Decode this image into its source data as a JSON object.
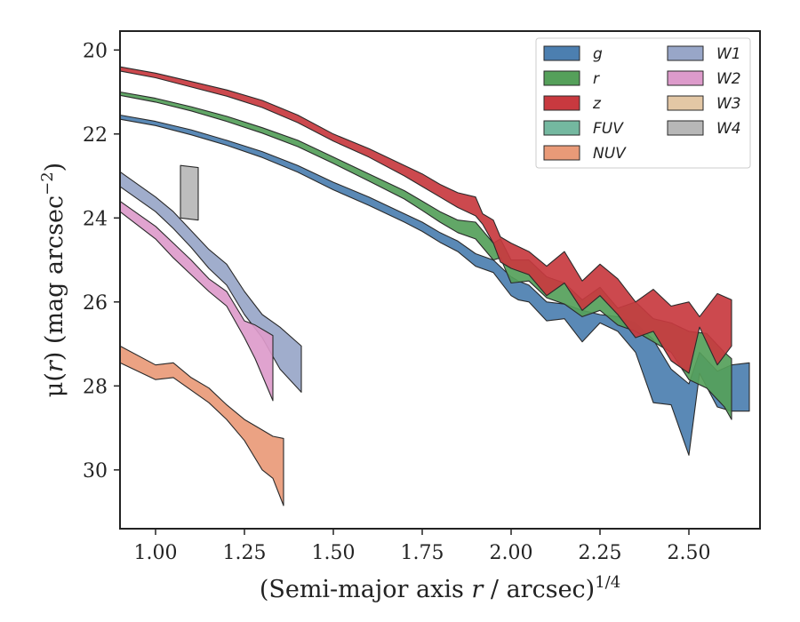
{
  "chart_data": {
    "type": "area",
    "xlabel": {
      "prefix": "(Semi-major axis ",
      "var": "r",
      "suffix": " / arcsec)",
      "exp": "1/4"
    },
    "ylabel": {
      "prefix": "μ(",
      "var": "r",
      "mid": ") (mag arcsec",
      "exp": "−2",
      "suffix": ")"
    },
    "xlim": [
      0.9,
      2.7
    ],
    "ylim": [
      31.4,
      19.55
    ],
    "y_inverted": true,
    "xticks": [
      1.0,
      1.25,
      1.5,
      1.75,
      2.0,
      2.25,
      2.5
    ],
    "xtick_labels": [
      "1.00",
      "1.25",
      "1.50",
      "1.75",
      "2.00",
      "2.25",
      "2.50"
    ],
    "yticks": [
      20,
      22,
      24,
      26,
      28,
      30
    ],
    "ytick_labels": [
      "20",
      "22",
      "24",
      "26",
      "28",
      "30"
    ],
    "grid": false,
    "legend_position": "top-right",
    "legend_columns": 2,
    "series": [
      {
        "name": "g",
        "color": "#4C7FB0",
        "x": [
          0.9,
          1.0,
          1.1,
          1.2,
          1.3,
          1.4,
          1.5,
          1.6,
          1.7,
          1.75,
          1.8,
          1.85,
          1.9,
          1.95,
          2.0,
          2.02,
          2.05,
          2.1,
          2.15,
          2.2,
          2.25,
          2.3,
          2.35,
          2.4,
          2.45,
          2.5,
          2.53,
          2.58,
          2.62,
          2.67
        ],
        "y_bright": [
          21.55,
          21.7,
          21.9,
          22.15,
          22.42,
          22.75,
          23.15,
          23.5,
          23.9,
          24.1,
          24.35,
          24.55,
          24.85,
          25.0,
          25.4,
          25.5,
          25.6,
          26.0,
          26.05,
          26.2,
          26.3,
          26.35,
          26.5,
          26.9,
          27.6,
          27.95,
          27.2,
          27.65,
          27.5,
          27.45
        ],
        "y_faint": [
          21.65,
          21.8,
          22.02,
          22.27,
          22.56,
          22.91,
          23.33,
          23.7,
          24.1,
          24.32,
          24.58,
          24.8,
          25.15,
          25.3,
          25.85,
          25.95,
          26.0,
          26.45,
          26.4,
          26.95,
          26.5,
          26.7,
          27.2,
          28.4,
          28.45,
          29.65,
          27.7,
          28.5,
          28.6,
          28.6
        ]
      },
      {
        "name": "r",
        "color": "#55A05A",
        "x": [
          0.9,
          1.0,
          1.1,
          1.2,
          1.3,
          1.4,
          1.5,
          1.6,
          1.7,
          1.75,
          1.8,
          1.85,
          1.9,
          1.95,
          1.97,
          2.0,
          2.05,
          2.1,
          2.15,
          2.2,
          2.25,
          2.3,
          2.35,
          2.4,
          2.45,
          2.5,
          2.55,
          2.6,
          2.62
        ],
        "y_bright": [
          21.0,
          21.15,
          21.35,
          21.58,
          21.85,
          22.15,
          22.55,
          22.95,
          23.35,
          23.6,
          23.85,
          24.05,
          24.1,
          24.6,
          24.5,
          25.0,
          25.0,
          25.4,
          25.55,
          25.95,
          25.65,
          26.15,
          26.0,
          26.4,
          26.5,
          26.7,
          26.75,
          27.2,
          27.35
        ],
        "y_faint": [
          21.08,
          21.24,
          21.45,
          21.7,
          21.98,
          22.3,
          22.7,
          23.12,
          23.55,
          23.82,
          24.1,
          24.35,
          24.5,
          25.0,
          24.95,
          25.55,
          25.5,
          25.9,
          26.05,
          26.35,
          26.2,
          26.55,
          26.7,
          26.95,
          27.2,
          27.85,
          28.05,
          28.5,
          28.8
        ]
      },
      {
        "name": "z",
        "color": "#C8393F",
        "x": [
          0.9,
          1.0,
          1.1,
          1.2,
          1.3,
          1.4,
          1.5,
          1.6,
          1.7,
          1.75,
          1.8,
          1.85,
          1.9,
          1.92,
          1.95,
          1.97,
          2.0,
          2.05,
          2.1,
          2.15,
          2.2,
          2.25,
          2.3,
          2.35,
          2.4,
          2.45,
          2.5,
          2.53,
          2.58,
          2.62
        ],
        "y_bright": [
          20.4,
          20.55,
          20.75,
          20.95,
          21.2,
          21.55,
          22.0,
          22.35,
          22.75,
          22.95,
          23.2,
          23.4,
          23.5,
          23.9,
          24.05,
          24.45,
          24.6,
          24.8,
          25.15,
          24.8,
          25.5,
          25.1,
          25.45,
          26.0,
          25.7,
          26.1,
          26.0,
          26.35,
          25.8,
          25.95
        ],
        "y_faint": [
          20.5,
          20.66,
          20.88,
          21.1,
          21.37,
          21.73,
          22.17,
          22.55,
          23.0,
          23.25,
          23.5,
          23.75,
          23.95,
          24.15,
          24.6,
          25.05,
          25.2,
          25.35,
          25.85,
          25.55,
          26.2,
          25.85,
          26.3,
          26.85,
          26.7,
          27.4,
          27.7,
          26.6,
          27.5,
          27.05
        ]
      },
      {
        "name": "FUV",
        "color": "#74B8A0",
        "x": [],
        "y_bright": [],
        "y_faint": []
      },
      {
        "name": "NUV",
        "color": "#E99A78",
        "x": [
          0.9,
          1.0,
          1.05,
          1.1,
          1.15,
          1.2,
          1.25,
          1.3,
          1.33,
          1.36
        ],
        "y_bright": [
          27.05,
          27.5,
          27.45,
          27.8,
          28.05,
          28.45,
          28.8,
          29.05,
          29.2,
          29.25
        ],
        "y_faint": [
          27.45,
          27.85,
          27.8,
          28.1,
          28.4,
          28.8,
          29.3,
          30.0,
          30.2,
          30.85
        ]
      },
      {
        "name": "W1",
        "color": "#98A6C8",
        "x": [
          0.9,
          1.0,
          1.05,
          1.1,
          1.15,
          1.2,
          1.25,
          1.3,
          1.35,
          1.41
        ],
        "y_bright": [
          22.9,
          23.5,
          23.85,
          24.3,
          24.75,
          25.1,
          25.75,
          26.3,
          26.6,
          27.05
        ],
        "y_faint": [
          23.25,
          23.85,
          24.25,
          24.7,
          25.2,
          25.6,
          26.3,
          26.85,
          27.6,
          28.15
        ]
      },
      {
        "name": "W2",
        "color": "#DD9BCB",
        "x": [
          0.9,
          1.0,
          1.05,
          1.1,
          1.15,
          1.2,
          1.25,
          1.28,
          1.33
        ],
        "y_bright": [
          23.6,
          24.2,
          24.6,
          25.0,
          25.45,
          25.75,
          26.45,
          26.55,
          26.8
        ],
        "y_faint": [
          23.85,
          24.5,
          24.95,
          25.35,
          25.75,
          26.1,
          26.85,
          27.35,
          28.35
        ]
      },
      {
        "name": "W3",
        "color": "#E3C7A5",
        "x": [],
        "y_bright": [],
        "y_faint": []
      },
      {
        "name": "W4",
        "color": "#B7B7B7",
        "x": [
          1.07,
          1.12
        ],
        "y_bright": [
          22.75,
          22.8
        ],
        "y_faint": [
          24.0,
          24.05
        ]
      }
    ]
  }
}
